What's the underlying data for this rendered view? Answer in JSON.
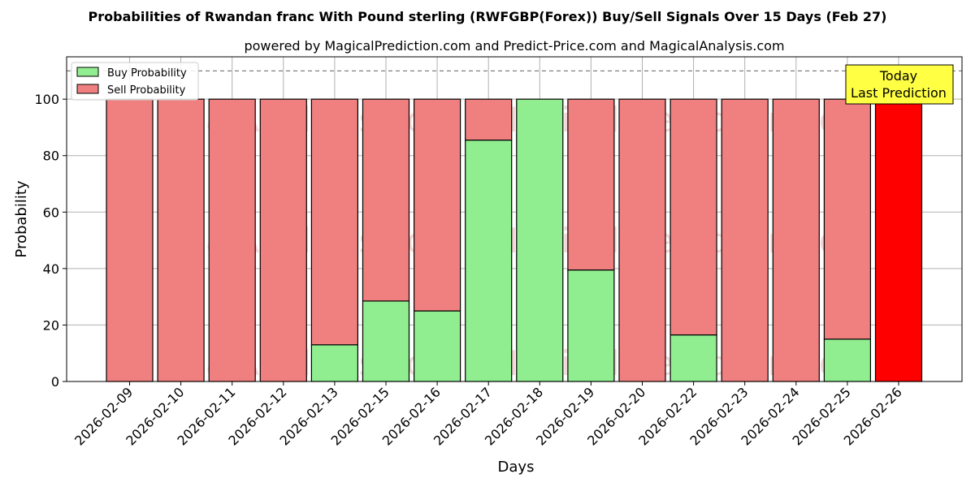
{
  "chart_data": {
    "type": "bar",
    "stacked": true,
    "title": "Probabilities of Rwandan franc With Pound sterling (RWFGBP(Forex)) Buy/Sell Signals Over 15 Days (Feb 27)",
    "subtitle": "powered by MagicalPrediction.com and Predict-Price.com and MagicalAnalysis.com",
    "xlabel": "Days",
    "ylabel": "Probability",
    "ylim": [
      0,
      115
    ],
    "yticks": [
      0,
      20,
      40,
      60,
      80,
      100
    ],
    "grid": true,
    "legend_position": "top-left",
    "reference_line": 110,
    "categories": [
      "2026-02-09",
      "2026-02-10",
      "2026-02-11",
      "2026-02-12",
      "2026-02-13",
      "2026-02-15",
      "2026-02-16",
      "2026-02-17",
      "2026-02-18",
      "2026-02-19",
      "2026-02-20",
      "2026-02-22",
      "2026-02-23",
      "2026-02-24",
      "2026-02-25",
      "2026-02-26"
    ],
    "series": [
      {
        "name": "Buy Probability",
        "color": "#90ee90",
        "values": [
          0,
          0,
          0,
          0,
          13,
          28.5,
          25,
          85.5,
          100,
          39.5,
          0,
          16.5,
          0,
          0,
          15,
          0
        ]
      },
      {
        "name": "Sell Probability",
        "color": "#f08080",
        "values": [
          100,
          100,
          100,
          100,
          87,
          71.5,
          75,
          14.5,
          0,
          60.5,
          100,
          83.5,
          100,
          100,
          85,
          100
        ]
      }
    ],
    "highlight": {
      "index": 15,
      "color": "#ff0000"
    },
    "annotation": {
      "lines": [
        "Today",
        "Last Prediction"
      ],
      "background": "#ffff44"
    },
    "watermarks": [
      "MagicalAnalysis.com",
      "MagicalPrediction.com"
    ]
  }
}
